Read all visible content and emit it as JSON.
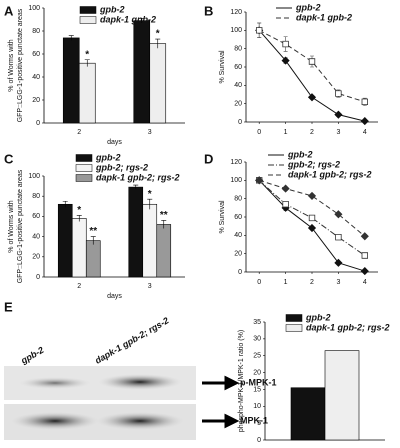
{
  "panels": [
    "A",
    "B",
    "C",
    "D",
    "E"
  ],
  "blot": {
    "lanes": [
      "gpb-2",
      "dapk-1 gpb-2; rgs-2"
    ],
    "bands": [
      "p-MPK-1",
      "MPK-1"
    ]
  },
  "chart_data": [
    {
      "type": "bar",
      "ylabel": [
        "% of Worms with",
        "GFP::LGG-1-positive punctate areas"
      ],
      "xlabel": "days",
      "categories": [
        "2",
        "3"
      ],
      "ylim": [
        0,
        100
      ],
      "yticks": [
        0,
        20,
        40,
        60,
        80,
        100
      ],
      "series": [
        {
          "name": "gpb-2",
          "color": "#111111",
          "values": [
            74,
            89
          ],
          "errors": [
            2,
            2
          ],
          "annotations": [
            null,
            null
          ]
        },
        {
          "name": "dapk-1 gpb-2",
          "color": "#eeeeee",
          "values": [
            52,
            69
          ],
          "errors": [
            3,
            4
          ],
          "annotations": [
            "*",
            "*"
          ]
        }
      ]
    },
    {
      "type": "line",
      "ylabel": [
        "% Survival"
      ],
      "x": [
        0,
        1,
        2,
        3,
        4
      ],
      "xlim": [
        -0.5,
        4.5
      ],
      "xticks": [
        0,
        1,
        2,
        3,
        4
      ],
      "ylim": [
        0,
        120
      ],
      "yticks": [
        0,
        20,
        40,
        60,
        80,
        100,
        120
      ],
      "series": [
        {
          "name": "gpb-2",
          "color": "#111111",
          "dash": "solid",
          "marker": "diamond",
          "fill": "filled",
          "values": [
            100,
            67,
            27,
            8,
            1
          ],
          "errors": [
            8,
            3,
            2,
            2,
            1
          ]
        },
        {
          "name": "dapk-1 gpb-2",
          "color": "#333333",
          "dash": "dash",
          "marker": "square",
          "fill": "open",
          "values": [
            100,
            85,
            66,
            31,
            22
          ],
          "errors": [
            8,
            8,
            6,
            4,
            4
          ]
        }
      ]
    },
    {
      "type": "bar",
      "ylabel": [
        "% of Worms with",
        "GFP::LGG-1-positive punctate areas"
      ],
      "xlabel": "days",
      "categories": [
        "2",
        "3"
      ],
      "ylim": [
        0,
        100
      ],
      "yticks": [
        0,
        20,
        40,
        60,
        80,
        100
      ],
      "series": [
        {
          "name": "gpb-2",
          "color": "#111111",
          "values": [
            72,
            89
          ],
          "errors": [
            3,
            2
          ],
          "annotations": [
            null,
            null
          ]
        },
        {
          "name": "gpb-2; rgs-2",
          "color": "#f4f4f4",
          "values": [
            58,
            72
          ],
          "errors": [
            3,
            5
          ],
          "annotations": [
            "*",
            "*"
          ]
        },
        {
          "name": "dapk-1 gpb-2; rgs-2",
          "color": "#999999",
          "values": [
            36,
            52
          ],
          "errors": [
            4,
            4
          ],
          "annotations": [
            "**",
            "**"
          ]
        }
      ]
    },
    {
      "type": "line",
      "ylabel": [
        "% Survival"
      ],
      "x": [
        0,
        1,
        2,
        3,
        4
      ],
      "xlim": [
        -0.5,
        4.5
      ],
      "xticks": [
        0,
        1,
        2,
        3,
        4
      ],
      "ylim": [
        0,
        120
      ],
      "yticks": [
        0,
        20,
        40,
        60,
        80,
        100,
        120
      ],
      "series": [
        {
          "name": "gpb-2",
          "color": "#111111",
          "dash": "solid",
          "marker": "diamond",
          "fill": "filled",
          "values": [
            100,
            70,
            48,
            10,
            1
          ],
          "errors": [
            3,
            3,
            2,
            1,
            1
          ]
        },
        {
          "name": "gpb-2; rgs-2",
          "color": "#333333",
          "dash": "dashdot",
          "marker": "square",
          "fill": "open",
          "values": [
            100,
            74,
            59,
            38,
            18
          ],
          "errors": [
            3,
            3,
            2,
            2,
            2
          ]
        },
        {
          "name": "dapk-1 gpb-2; rgs-2",
          "color": "#333333",
          "dash": "dash",
          "marker": "diamond",
          "fill": "filled",
          "values": [
            100,
            91,
            83,
            63,
            39
          ],
          "errors": [
            3,
            2,
            2,
            2,
            2
          ]
        }
      ]
    },
    {
      "type": "bar",
      "ylabel": [
        "phospho-MPK-1/MPK-1 ratio (%)"
      ],
      "categories": [
        null
      ],
      "ylim": [
        0,
        35
      ],
      "yticks": [
        0,
        5,
        10,
        15,
        20,
        25,
        30,
        35
      ],
      "series": [
        {
          "name": "gpb-2",
          "color": "#111111",
          "values": [
            15.5
          ]
        },
        {
          "name": "dapk-1 gpb-2; rgs-2",
          "color": "#eeeeee",
          "values": [
            26.5
          ]
        }
      ]
    }
  ]
}
